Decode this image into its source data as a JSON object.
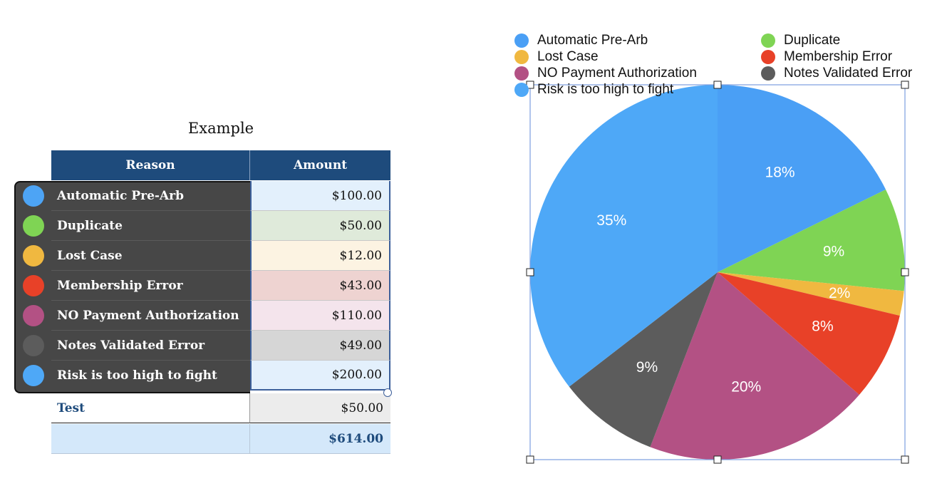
{
  "table": {
    "title": "Example",
    "headers": {
      "reason": "Reason",
      "amount": "Amount"
    },
    "rows": [
      {
        "reason": "Automatic Pre-Arb",
        "amount": "$100.00",
        "color": "#4da4f5",
        "fill": "#e3f0fc"
      },
      {
        "reason": "Duplicate",
        "amount": "$50.00",
        "color": "#7fd454",
        "fill": "#dfeada"
      },
      {
        "reason": "Lost Case",
        "amount": "$12.00",
        "color": "#f0b840",
        "fill": "#fcf3e2"
      },
      {
        "reason": "Membership Error",
        "amount": "$43.00",
        "color": "#e84128",
        "fill": "#eed3d1"
      },
      {
        "reason": "NO Payment Authorization",
        "amount": "$110.00",
        "color": "#b35184",
        "fill": "#f4e4ec"
      },
      {
        "reason": "Notes Validated Error",
        "amount": "$49.00",
        "color": "#5c5c5c",
        "fill": "#d6d6d6"
      },
      {
        "reason": "Risk is too high to fight",
        "amount": "$200.00",
        "color": "#4ea8f7",
        "fill": "#e3f0fc"
      }
    ],
    "test_row": {
      "reason": "Test",
      "amount": "$50.00"
    },
    "total_row": {
      "amount": "$614.00"
    }
  },
  "chart_data": {
    "type": "pie",
    "labels": [
      "Automatic Pre-Arb",
      "Duplicate",
      "Lost Case",
      "Membership Error",
      "NO Payment Authorization",
      "Notes Validated Error",
      "Risk is too high to fight"
    ],
    "values": [
      100,
      50,
      12,
      43,
      110,
      49,
      200
    ],
    "percent_labels": [
      "18%",
      "9%",
      "2%",
      "8%",
      "20%",
      "9%",
      "35%"
    ],
    "colors": [
      "#4a9ff5",
      "#7fd454",
      "#f0b840",
      "#e84128",
      "#b35184",
      "#5c5c5c",
      "#4ea8f7"
    ],
    "legend_position": "top"
  }
}
